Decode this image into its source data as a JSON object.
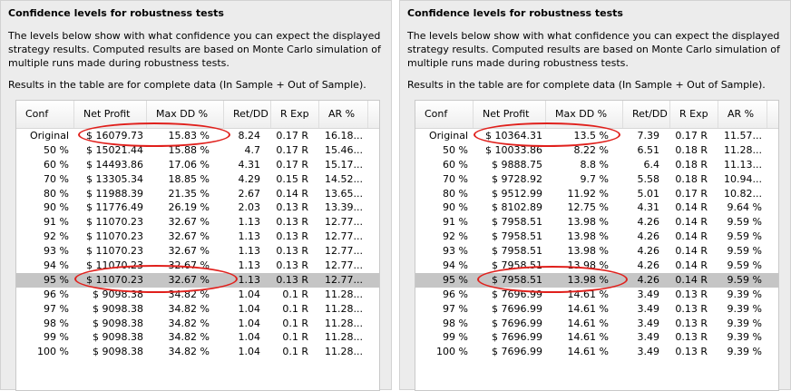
{
  "left": {
    "title": "Confidence levels for robustness tests",
    "desc": "The levels below show with what confidence you can expect the displayed strategy results. Computed results are based on Monte Carlo simulation of multiple runs made during robustness tests.",
    "note": "Results in the table are for complete data (In Sample + Out of Sample).",
    "headers": [
      "Conf",
      "Net Profit",
      "Max DD %",
      "Ret/DD",
      "R Exp",
      "AR %"
    ],
    "rows": [
      [
        "Original",
        "$ 16079.73",
        "15.83 %",
        "8.24",
        "0.17 R",
        "16.18..."
      ],
      [
        "50 %",
        "$ 15021.44",
        "15.88 %",
        "4.7",
        "0.17 R",
        "15.46..."
      ],
      [
        "60 %",
        "$ 14493.86",
        "17.06 %",
        "4.31",
        "0.17 R",
        "15.17..."
      ],
      [
        "70 %",
        "$ 13305.34",
        "18.85 %",
        "4.29",
        "0.15 R",
        "14.52..."
      ],
      [
        "80 %",
        "$ 11988.39",
        "21.35 %",
        "2.67",
        "0.14 R",
        "13.65..."
      ],
      [
        "90 %",
        "$ 11776.49",
        "26.19 %",
        "2.03",
        "0.13 R",
        "13.39..."
      ],
      [
        "91 %",
        "$ 11070.23",
        "32.67 %",
        "1.13",
        "0.13 R",
        "12.77..."
      ],
      [
        "92 %",
        "$ 11070.23",
        "32.67 %",
        "1.13",
        "0.13 R",
        "12.77..."
      ],
      [
        "93 %",
        "$ 11070.23",
        "32.67 %",
        "1.13",
        "0.13 R",
        "12.77..."
      ],
      [
        "94 %",
        "$ 11070.23",
        "32.67 %",
        "1.13",
        "0.13 R",
        "12.77..."
      ],
      [
        "95 %",
        "$ 11070.23",
        "32.67 %",
        "1.13",
        "0.13 R",
        "12.77..."
      ],
      [
        "96 %",
        "$ 9098.38",
        "34.82 %",
        "1.04",
        "0.1 R",
        "11.28..."
      ],
      [
        "97 %",
        "$ 9098.38",
        "34.82 %",
        "1.04",
        "0.1 R",
        "11.28..."
      ],
      [
        "98 %",
        "$ 9098.38",
        "34.82 %",
        "1.04",
        "0.1 R",
        "11.28..."
      ],
      [
        "99 %",
        "$ 9098.38",
        "34.82 %",
        "1.04",
        "0.1 R",
        "11.28..."
      ],
      [
        "100 %",
        "$ 9098.38",
        "34.82 %",
        "1.04",
        "0.1 R",
        "11.28..."
      ]
    ],
    "selected_row": 10,
    "highlight_color": "#e0201c"
  },
  "right": {
    "title": "Confidence levels for robustness tests",
    "desc": "The levels below show with what confidence you can expect the displayed strategy results. Computed results are based on Monte Carlo simulation of multiple runs made during robustness tests.",
    "note": "Results in the table are for complete data (In Sample + Out of Sample).",
    "headers": [
      "Conf",
      "Net Profit",
      "Max DD %",
      "Ret/DD",
      "R Exp",
      "AR %"
    ],
    "rows": [
      [
        "Original",
        "$ 10364.31",
        "13.5 %",
        "7.39",
        "0.17 R",
        "11.57..."
      ],
      [
        "50 %",
        "$ 10033.86",
        "8.22 %",
        "6.51",
        "0.18 R",
        "11.28..."
      ],
      [
        "60 %",
        "$ 9888.75",
        "8.8 %",
        "6.4",
        "0.18 R",
        "11.13..."
      ],
      [
        "70 %",
        "$ 9728.92",
        "9.7 %",
        "5.58",
        "0.18 R",
        "10.94..."
      ],
      [
        "80 %",
        "$ 9512.99",
        "11.92 %",
        "5.01",
        "0.17 R",
        "10.82..."
      ],
      [
        "90 %",
        "$ 8102.89",
        "12.75 %",
        "4.31",
        "0.14 R",
        "9.64 %"
      ],
      [
        "91 %",
        "$ 7958.51",
        "13.98 %",
        "4.26",
        "0.14 R",
        "9.59 %"
      ],
      [
        "92 %",
        "$ 7958.51",
        "13.98 %",
        "4.26",
        "0.14 R",
        "9.59 %"
      ],
      [
        "93 %",
        "$ 7958.51",
        "13.98 %",
        "4.26",
        "0.14 R",
        "9.59 %"
      ],
      [
        "94 %",
        "$ 7958.51",
        "13.98 %",
        "4.26",
        "0.14 R",
        "9.59 %"
      ],
      [
        "95 %",
        "$ 7958.51",
        "13.98 %",
        "4.26",
        "0.14 R",
        "9.59 %"
      ],
      [
        "96 %",
        "$ 7696.99",
        "14.61 %",
        "3.49",
        "0.13 R",
        "9.39 %"
      ],
      [
        "97 %",
        "$ 7696.99",
        "14.61 %",
        "3.49",
        "0.13 R",
        "9.39 %"
      ],
      [
        "98 %",
        "$ 7696.99",
        "14.61 %",
        "3.49",
        "0.13 R",
        "9.39 %"
      ],
      [
        "99 %",
        "$ 7696.99",
        "14.61 %",
        "3.49",
        "0.13 R",
        "9.39 %"
      ],
      [
        "100 %",
        "$ 7696.99",
        "14.61 %",
        "3.49",
        "0.13 R",
        "9.39 %"
      ]
    ],
    "selected_row": 10,
    "highlight_color": "#e0201c"
  }
}
